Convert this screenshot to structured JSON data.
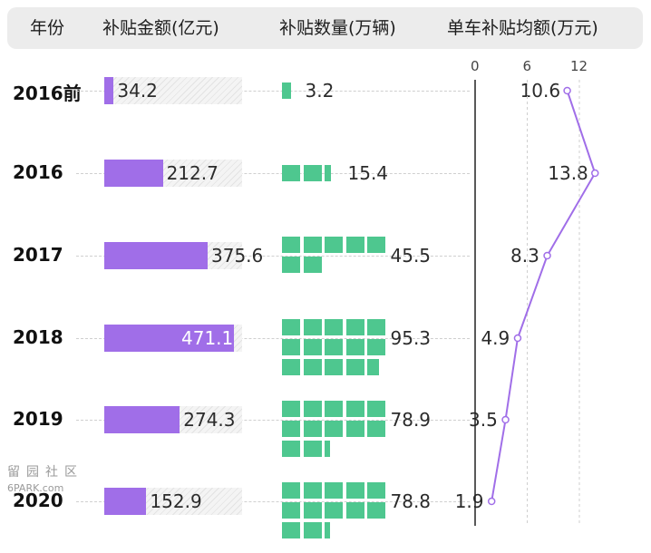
{
  "header": {
    "year": "年份",
    "amount": "补贴金额(亿元)",
    "quantity": "补贴数量(万辆)",
    "average": "单车补贴均额(万元)"
  },
  "watermark": {
    "cn": "留园社区",
    "en": "6PARK.com"
  },
  "colors": {
    "amount_bar": "#a06ee8",
    "quantity_block": "#4ec78f",
    "average_line": "#a06ee8",
    "header_bg": "#ececec"
  },
  "chart_data": [
    {
      "type": "bar",
      "title": "补贴金额(亿元)",
      "categories": [
        "2016前",
        "2016",
        "2017",
        "2018",
        "2019",
        "2020"
      ],
      "values": [
        34.2,
        212.7,
        375.6,
        471.1,
        274.3,
        152.9
      ]
    },
    {
      "type": "bar",
      "title": "补贴数量(万辆)",
      "categories": [
        "2016前",
        "2016",
        "2017",
        "2018",
        "2019",
        "2020"
      ],
      "values": [
        3.2,
        15.4,
        45.5,
        95.3,
        78.9,
        78.8
      ]
    },
    {
      "type": "line",
      "title": "单车补贴均额(万元)",
      "categories": [
        "2016前",
        "2016",
        "2017",
        "2018",
        "2019",
        "2020"
      ],
      "values": [
        10.6,
        13.8,
        8.3,
        4.9,
        3.5,
        1.9
      ],
      "ticks": [
        "0",
        "6",
        "12"
      ],
      "xlim": [
        0,
        15
      ],
      "grid": true
    }
  ]
}
